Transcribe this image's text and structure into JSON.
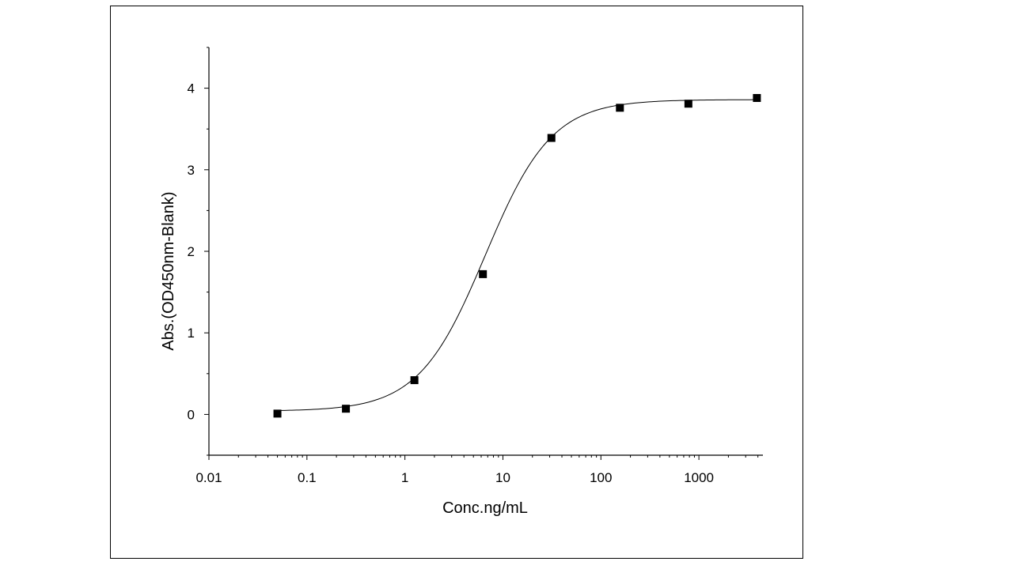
{
  "chart_data": {
    "type": "scatter",
    "title": "",
    "xlabel": "Conc.ng/mL",
    "ylabel": "Abs.(OD450nm-Blank)",
    "xscale": "log",
    "xlim": [
      0.01,
      4500
    ],
    "ylim": [
      -0.5,
      4.5
    ],
    "x_ticks": [
      0.01,
      0.1,
      1,
      10,
      100,
      1000
    ],
    "x_tick_labels": [
      "0.01",
      "0.1",
      "1",
      "10",
      "100",
      "1000"
    ],
    "y_ticks": [
      0,
      1,
      2,
      3,
      4
    ],
    "y_tick_labels": [
      "0",
      "1",
      "2",
      "3",
      "4"
    ],
    "grid": false,
    "legend": "none",
    "series": [
      {
        "marker": "square",
        "color": "#000000",
        "x": [
          0.05,
          0.25,
          1.25,
          6.25,
          31.25,
          156.25,
          781.25,
          3906.25
        ],
        "y": [
          0.01,
          0.07,
          0.42,
          1.72,
          3.39,
          3.76,
          3.81,
          3.88
        ]
      }
    ],
    "fit_curve": {
      "model": "4PL",
      "color": "#000000",
      "bottom": 0.04,
      "top": 3.86,
      "ec50": 6.6,
      "hill": 1.28
    }
  }
}
